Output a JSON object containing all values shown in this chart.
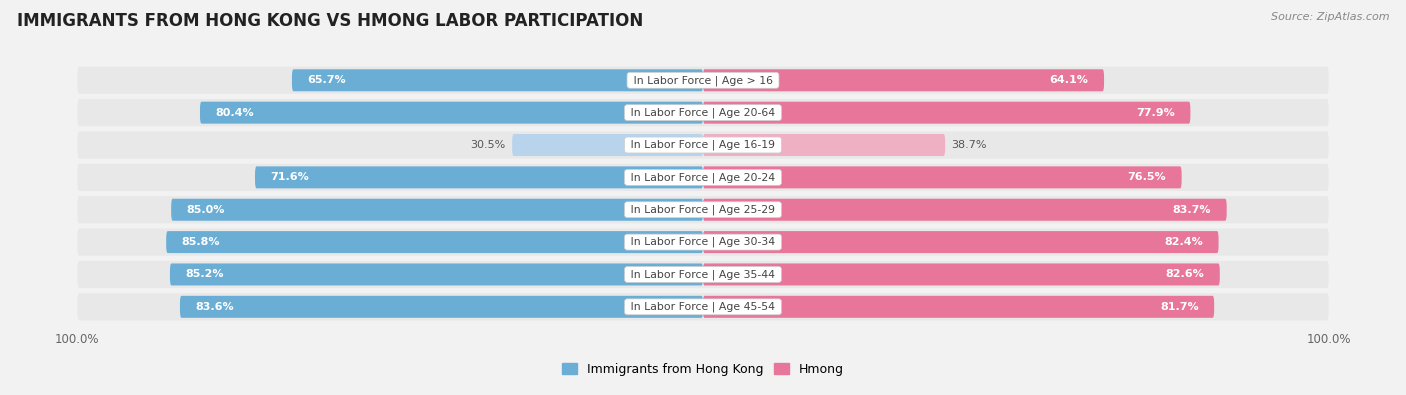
{
  "title": "IMMIGRANTS FROM HONG KONG VS HMONG LABOR PARTICIPATION",
  "source": "Source: ZipAtlas.com",
  "categories": [
    "In Labor Force | Age > 16",
    "In Labor Force | Age 20-64",
    "In Labor Force | Age 16-19",
    "In Labor Force | Age 20-24",
    "In Labor Force | Age 25-29",
    "In Labor Force | Age 30-34",
    "In Labor Force | Age 35-44",
    "In Labor Force | Age 45-54"
  ],
  "hk_values": [
    65.7,
    80.4,
    30.5,
    71.6,
    85.0,
    85.8,
    85.2,
    83.6
  ],
  "hmong_values": [
    64.1,
    77.9,
    38.7,
    76.5,
    83.7,
    82.4,
    82.6,
    81.7
  ],
  "hk_color": "#6AAED6",
  "hk_color_light": "#B8D4EC",
  "hmong_color": "#E8759A",
  "hmong_color_light": "#F0B0C4",
  "background_color": "#f2f2f2",
  "row_bg_color": "#e8e8e8",
  "title_fontsize": 12,
  "bar_fontsize": 8,
  "cat_fontsize": 7.8,
  "legend_label_hk": "Immigrants from Hong Kong",
  "legend_label_hmong": "Hmong",
  "xlim": 100.0
}
